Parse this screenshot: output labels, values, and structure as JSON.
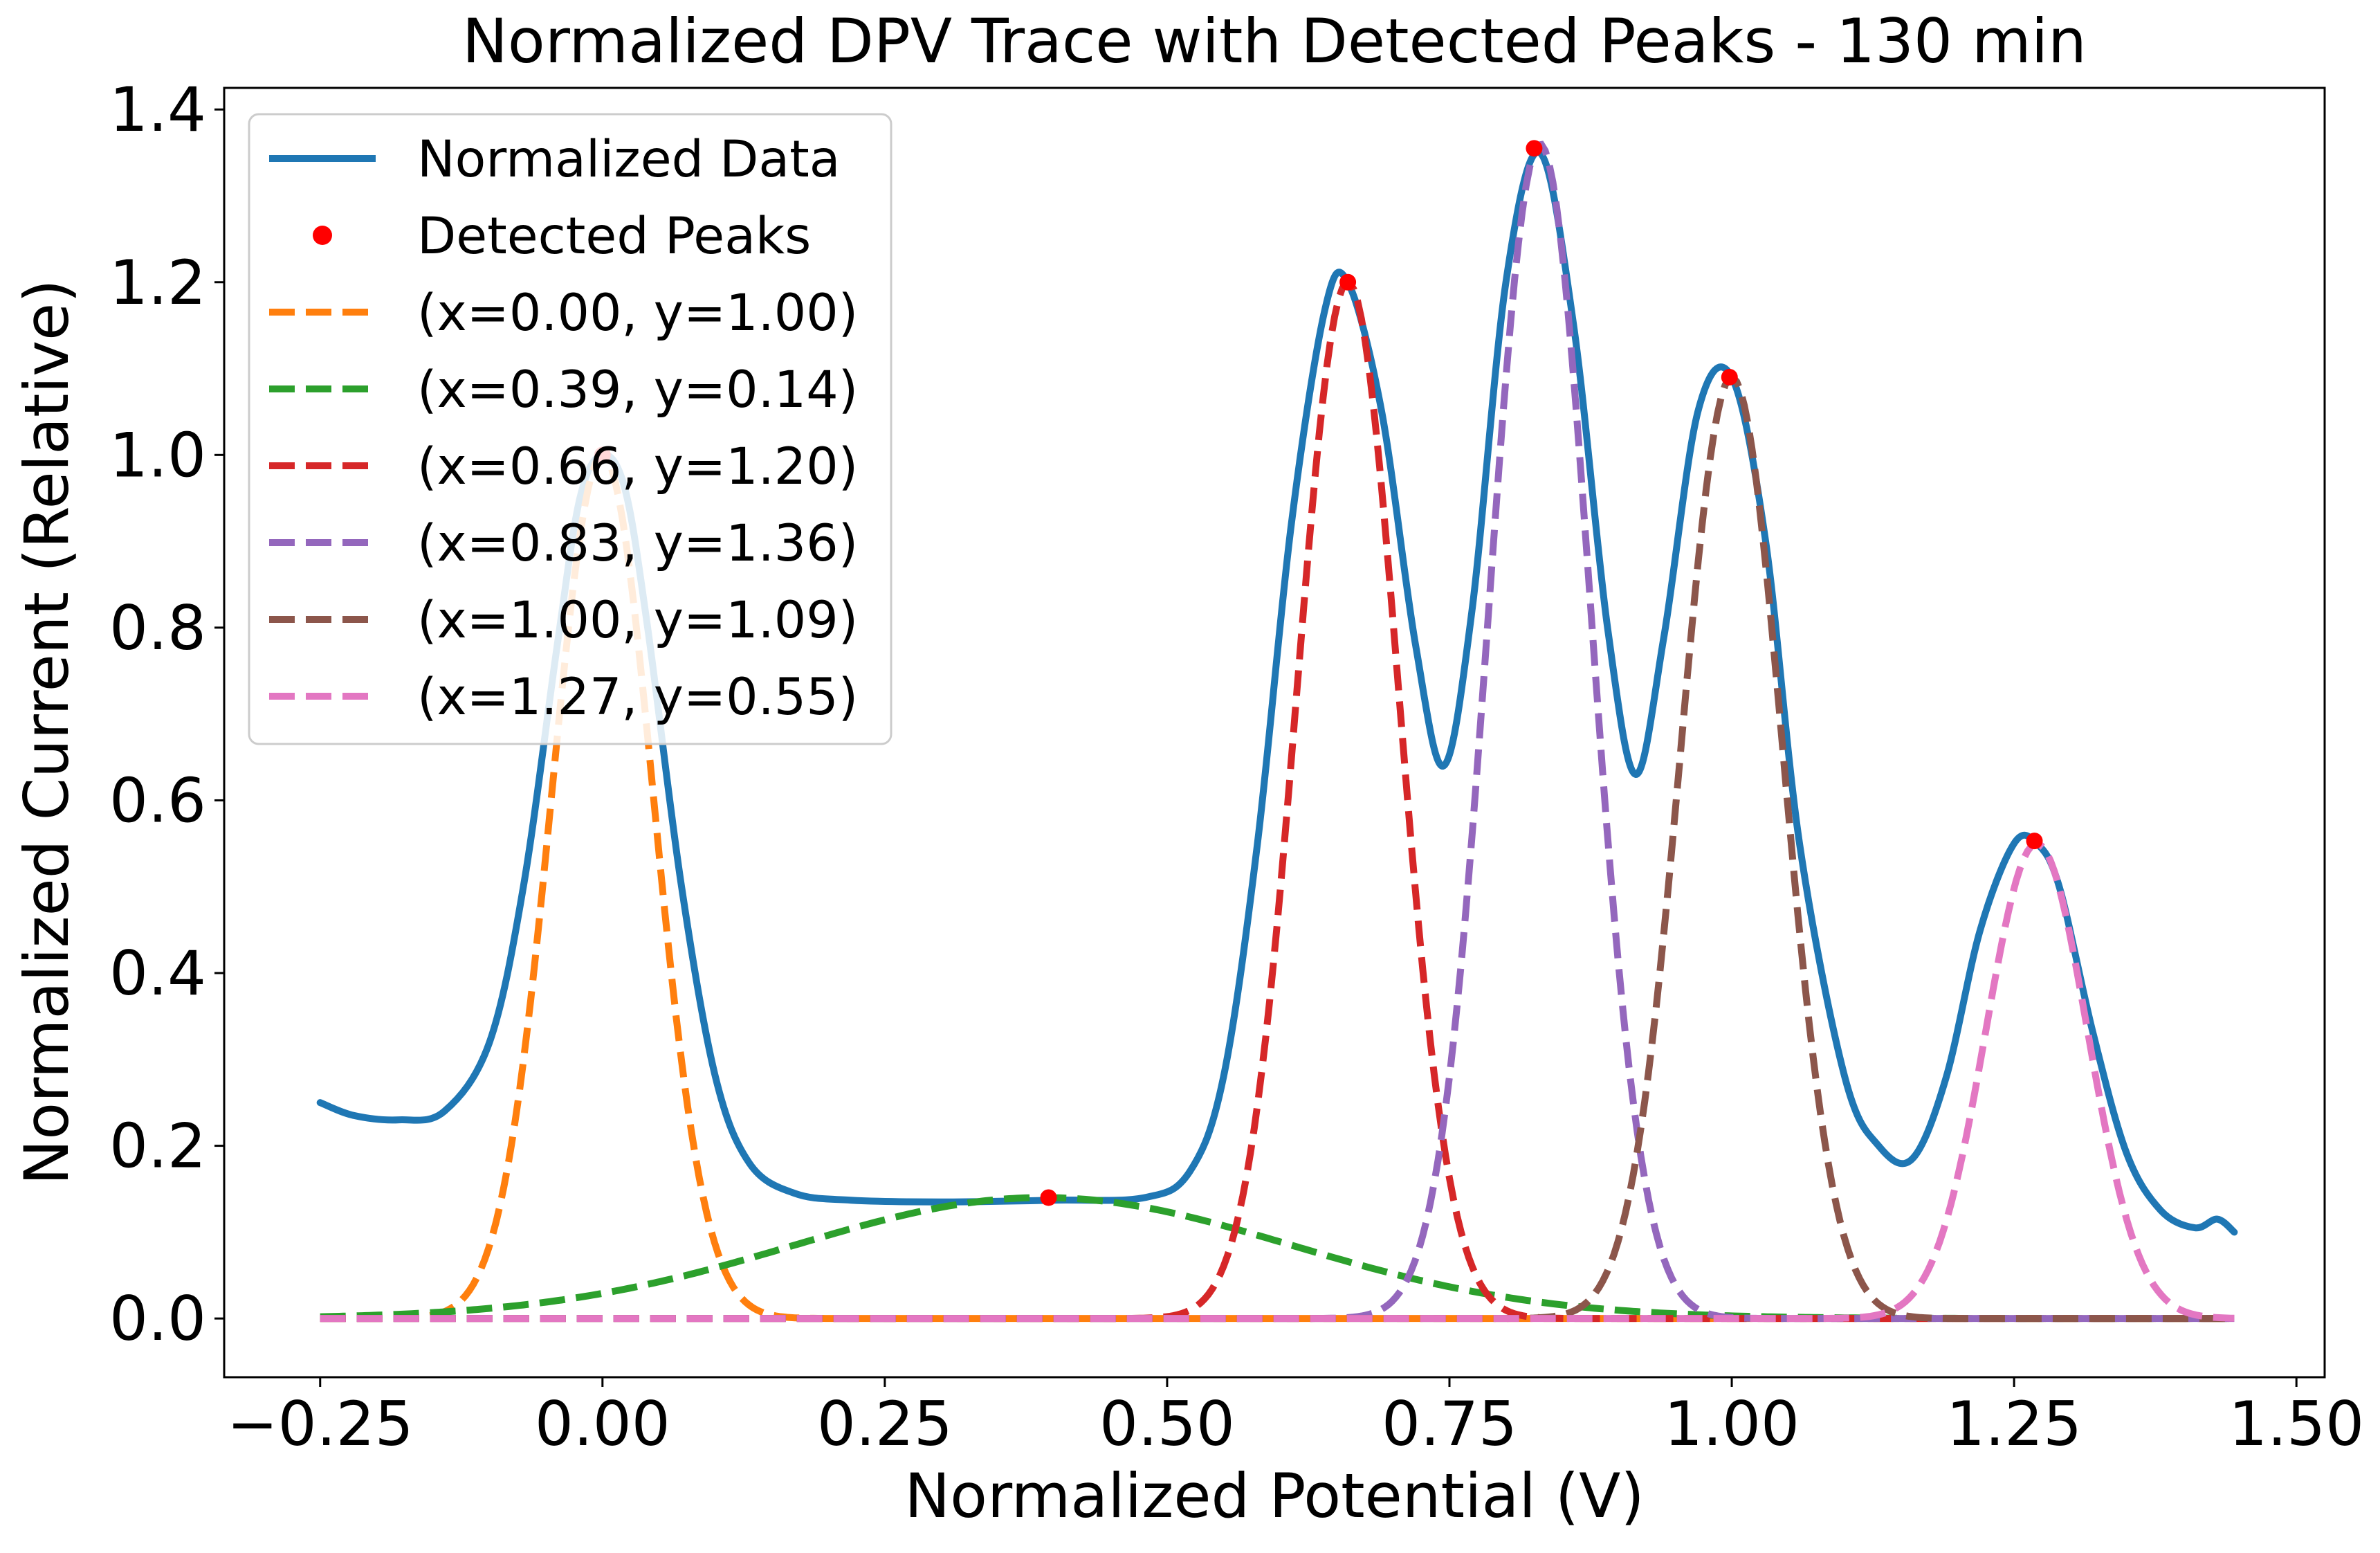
{
  "chart_data": {
    "type": "line",
    "title": "Normalized DPV Trace with Detected Peaks - 130 min",
    "xlabel": "Normalized Potential (V)",
    "ylabel": "Normalized Current (Relative)",
    "xlim": [
      -0.335,
      1.525
    ],
    "ylim": [
      -0.068,
      1.425
    ],
    "x_ticks": [
      {
        "value": -0.25,
        "label": "−0.25"
      },
      {
        "value": 0.0,
        "label": "0.00"
      },
      {
        "value": 0.25,
        "label": "0.25"
      },
      {
        "value": 0.5,
        "label": "0.50"
      },
      {
        "value": 0.75,
        "label": "0.75"
      },
      {
        "value": 1.0,
        "label": "1.00"
      },
      {
        "value": 1.25,
        "label": "1.25"
      },
      {
        "value": 1.5,
        "label": "1.50"
      }
    ],
    "y_ticks": [
      {
        "value": 0.0,
        "label": "0.0"
      },
      {
        "value": 0.2,
        "label": "0.2"
      },
      {
        "value": 0.4,
        "label": "0.4"
      },
      {
        "value": 0.6,
        "label": "0.6"
      },
      {
        "value": 0.8,
        "label": "0.8"
      },
      {
        "value": 1.0,
        "label": "1.0"
      },
      {
        "value": 1.2,
        "label": "1.2"
      },
      {
        "value": 1.4,
        "label": "1.4"
      }
    ],
    "grid": false,
    "legend_position": "upper-left",
    "x_range": [
      -0.25,
      1.445
    ],
    "series": [
      {
        "name": "Normalized Data",
        "kind": "line",
        "color": "#1f77b4",
        "x": [
          -0.25,
          -0.22,
          -0.18,
          -0.14,
          -0.1,
          -0.07,
          -0.04,
          -0.02,
          0.0,
          0.02,
          0.04,
          0.07,
          0.1,
          0.13,
          0.17,
          0.22,
          0.3,
          0.4,
          0.48,
          0.52,
          0.55,
          0.58,
          0.61,
          0.64,
          0.66,
          0.69,
          0.72,
          0.745,
          0.77,
          0.8,
          0.83,
          0.86,
          0.89,
          0.915,
          0.94,
          0.97,
          1.0,
          1.03,
          1.06,
          1.1,
          1.13,
          1.16,
          1.19,
          1.22,
          1.25,
          1.27,
          1.29,
          1.32,
          1.35,
          1.38,
          1.41,
          1.43,
          1.445
        ],
        "y": [
          0.25,
          0.235,
          0.23,
          0.24,
          0.32,
          0.5,
          0.78,
          0.95,
          1.0,
          0.96,
          0.8,
          0.5,
          0.28,
          0.18,
          0.145,
          0.137,
          0.135,
          0.137,
          0.14,
          0.17,
          0.28,
          0.55,
          0.92,
          1.17,
          1.2,
          1.05,
          0.78,
          0.64,
          0.82,
          1.2,
          1.35,
          1.15,
          0.8,
          0.63,
          0.79,
          1.05,
          1.09,
          0.9,
          0.55,
          0.28,
          0.2,
          0.185,
          0.28,
          0.45,
          0.55,
          0.55,
          0.5,
          0.33,
          0.19,
          0.125,
          0.105,
          0.115,
          0.1
        ]
      },
      {
        "name": "Detected Peaks",
        "kind": "scatter",
        "color": "#ff0000",
        "x": [
          0.0,
          0.395,
          0.66,
          0.825,
          0.998,
          1.268
        ],
        "y": [
          1.0,
          0.14,
          1.2,
          1.355,
          1.09,
          0.553
        ]
      },
      {
        "name": "(x=0.00, y=1.00)",
        "kind": "gaussian",
        "color": "#ff7f0e",
        "center": 0.0,
        "amplitude": 1.0,
        "sigma": 0.045
      },
      {
        "name": "(x=0.39, y=0.14)",
        "kind": "gaussian",
        "color": "#2ca02c",
        "center": 0.39,
        "amplitude": 0.14,
        "sigma": 0.22
      },
      {
        "name": "(x=0.66, y=1.20)",
        "kind": "gaussian",
        "color": "#d62728",
        "center": 0.66,
        "amplitude": 1.2,
        "sigma": 0.045
      },
      {
        "name": "(x=0.83, y=1.36)",
        "kind": "gaussian",
        "color": "#9467bd",
        "center": 0.83,
        "amplitude": 1.36,
        "sigma": 0.045
      },
      {
        "name": "(x=1.00, y=1.09)",
        "kind": "gaussian",
        "color": "#8c564b",
        "center": 1.0,
        "amplitude": 1.09,
        "sigma": 0.045
      },
      {
        "name": "(x=1.27, y=0.55)",
        "kind": "gaussian",
        "color": "#e377c2",
        "center": 1.27,
        "amplitude": 0.55,
        "sigma": 0.045
      }
    ]
  }
}
